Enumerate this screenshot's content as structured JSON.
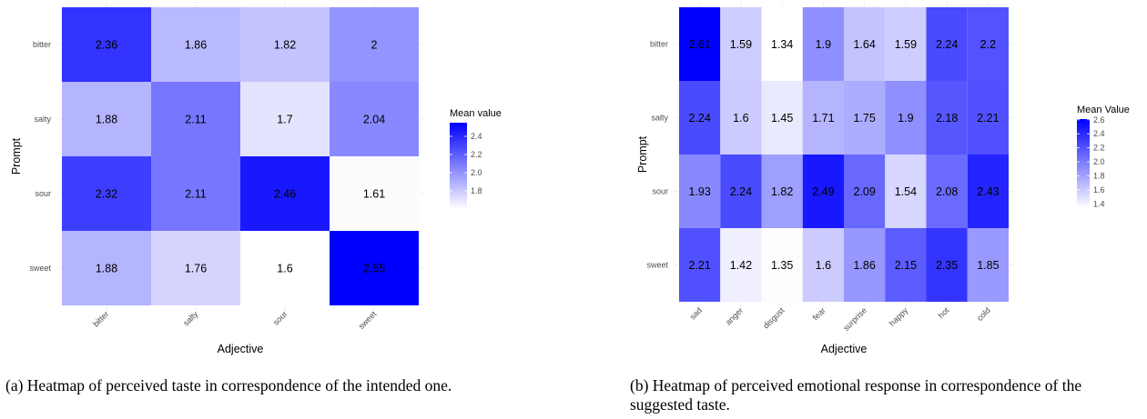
{
  "chart_data": [
    {
      "type": "heatmap",
      "xlabel": "Adjective",
      "ylabel": "Prompt",
      "x": [
        "bitter",
        "salty",
        "sour",
        "sweet"
      ],
      "y": [
        "bitter",
        "salty",
        "sour",
        "sweet"
      ],
      "values": [
        [
          2.36,
          1.86,
          1.82,
          2
        ],
        [
          1.88,
          2.11,
          1.7,
          2.04
        ],
        [
          2.32,
          2.11,
          2.46,
          1.61
        ],
        [
          1.88,
          1.76,
          1.6,
          2.55
        ]
      ],
      "legend": {
        "title": "Mean value",
        "ticks": [
          "2.4",
          "2.2",
          "2.0",
          "1.8"
        ],
        "range": [
          1.6,
          2.55
        ]
      },
      "color_low": "#ffffff",
      "color_high": "#0000ff"
    },
    {
      "type": "heatmap",
      "xlabel": "Adjective",
      "ylabel": "Prompt",
      "x": [
        "sad",
        "anger",
        "disgust",
        "fear",
        "surprise",
        "happy",
        "hot",
        "cold"
      ],
      "y": [
        "bitter",
        "salty",
        "sour",
        "sweet"
      ],
      "values": [
        [
          2.61,
          1.59,
          1.34,
          1.9,
          1.64,
          1.59,
          2.24,
          2.2
        ],
        [
          2.24,
          1.6,
          1.45,
          1.71,
          1.75,
          1.9,
          2.18,
          2.21
        ],
        [
          1.93,
          2.24,
          1.82,
          2.49,
          2.09,
          1.54,
          2.08,
          2.43
        ],
        [
          2.21,
          1.42,
          1.35,
          1.6,
          1.86,
          2.15,
          2.35,
          1.85
        ]
      ],
      "legend": {
        "title": "Mean Value",
        "ticks": [
          "2.6",
          "2.4",
          "2.2",
          "2.0",
          "1.8",
          "1.6",
          "1.4"
        ],
        "range": [
          1.34,
          2.61
        ]
      },
      "color_low": "#ffffff",
      "color_high": "#0000ff"
    }
  ],
  "captions": {
    "a": "(a) Heatmap of perceived taste in correspondence of the intended one.",
    "b": "(b) Heatmap of perceived emotional response in correspondence of the suggested taste."
  }
}
